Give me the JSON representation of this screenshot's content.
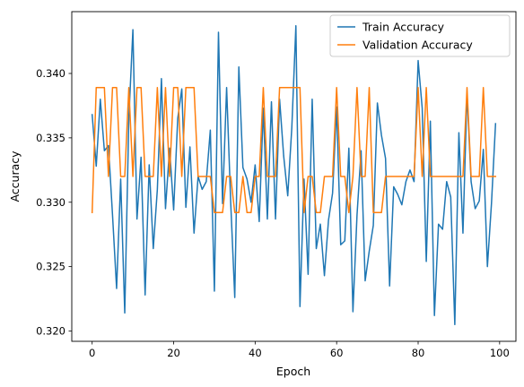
{
  "chart_data": {
    "type": "line",
    "xlabel": "Epoch",
    "ylabel": "Accuracy",
    "xlim": [
      -5,
      104
    ],
    "ylim": [
      0.3192,
      0.3448
    ],
    "xticks": [
      0,
      20,
      40,
      60,
      80,
      100
    ],
    "xtick_labels": [
      "0",
      "20",
      "40",
      "60",
      "80",
      "100"
    ],
    "yticks": [
      0.32,
      0.325,
      0.33,
      0.335,
      0.34
    ],
    "ytick_labels": [
      "0.320",
      "0.325",
      "0.330",
      "0.335",
      "0.340"
    ],
    "grid": false,
    "legend_position": "top-right",
    "x": [
      0,
      1,
      2,
      3,
      4,
      5,
      6,
      7,
      8,
      9,
      10,
      11,
      12,
      13,
      14,
      15,
      16,
      17,
      18,
      19,
      20,
      21,
      22,
      23,
      24,
      25,
      26,
      27,
      28,
      29,
      30,
      31,
      32,
      33,
      34,
      35,
      36,
      37,
      38,
      39,
      40,
      41,
      42,
      43,
      44,
      45,
      46,
      47,
      48,
      49,
      50,
      51,
      52,
      53,
      54,
      55,
      56,
      57,
      58,
      59,
      60,
      61,
      62,
      63,
      64,
      65,
      66,
      67,
      68,
      69,
      70,
      71,
      72,
      73,
      74,
      75,
      76,
      77,
      78,
      79,
      80,
      81,
      82,
      83,
      84,
      85,
      86,
      87,
      88,
      89,
      90,
      91,
      92,
      93,
      94,
      95,
      96,
      97,
      98,
      99
    ],
    "series": [
      {
        "name": "Train Accuracy",
        "color": "#1f77b4",
        "values": [
          0.3368,
          0.3328,
          0.338,
          0.334,
          0.3344,
          0.329,
          0.3233,
          0.3318,
          0.3214,
          0.3365,
          0.3434,
          0.3287,
          0.3335,
          0.3228,
          0.3329,
          0.3264,
          0.331,
          0.3396,
          0.3295,
          0.3342,
          0.3294,
          0.3365,
          0.3388,
          0.3296,
          0.3343,
          0.3276,
          0.332,
          0.331,
          0.3316,
          0.3356,
          0.3231,
          0.3432,
          0.3299,
          0.3389,
          0.33,
          0.3226,
          0.3405,
          0.3327,
          0.3318,
          0.33,
          0.3329,
          0.3285,
          0.3373,
          0.3287,
          0.3378,
          0.3287,
          0.338,
          0.3336,
          0.3305,
          0.3358,
          0.3437,
          0.3219,
          0.3318,
          0.3244,
          0.338,
          0.3264,
          0.3283,
          0.3243,
          0.3286,
          0.3307,
          0.3374,
          0.3267,
          0.327,
          0.3342,
          0.3215,
          0.329,
          0.334,
          0.3239,
          0.3262,
          0.3282,
          0.3377,
          0.3352,
          0.3334,
          0.3235,
          0.3312,
          0.3306,
          0.3298,
          0.3316,
          0.3325,
          0.3316,
          0.341,
          0.3373,
          0.3254,
          0.3363,
          0.3212,
          0.3283,
          0.3279,
          0.3316,
          0.3304,
          0.3205,
          0.3354,
          0.3276,
          0.3385,
          0.3316,
          0.3295,
          0.3301,
          0.3341,
          0.325,
          0.3299,
          0.3361
        ]
      },
      {
        "name": "Validation Accuracy",
        "color": "#ff7f0e",
        "values": [
          0.3292,
          0.3389,
          0.3389,
          0.3389,
          0.332,
          0.3389,
          0.3389,
          0.332,
          0.332,
          0.3389,
          0.332,
          0.3389,
          0.3389,
          0.332,
          0.332,
          0.332,
          0.3389,
          0.332,
          0.3389,
          0.332,
          0.3389,
          0.3389,
          0.332,
          0.3389,
          0.3389,
          0.3389,
          0.332,
          0.332,
          0.332,
          0.332,
          0.3292,
          0.3292,
          0.3292,
          0.332,
          0.332,
          0.3292,
          0.3292,
          0.332,
          0.3292,
          0.3292,
          0.332,
          0.332,
          0.3389,
          0.332,
          0.332,
          0.332,
          0.3389,
          0.3389,
          0.3389,
          0.3389,
          0.3389,
          0.3389,
          0.3292,
          0.332,
          0.332,
          0.3292,
          0.3292,
          0.332,
          0.332,
          0.332,
          0.3389,
          0.332,
          0.332,
          0.3292,
          0.332,
          0.3389,
          0.332,
          0.332,
          0.3389,
          0.3292,
          0.3292,
          0.3292,
          0.332,
          0.332,
          0.332,
          0.332,
          0.332,
          0.332,
          0.332,
          0.332,
          0.3389,
          0.332,
          0.3389,
          0.332,
          0.332,
          0.332,
          0.332,
          0.332,
          0.332,
          0.332,
          0.332,
          0.332,
          0.3389,
          0.332,
          0.332,
          0.332,
          0.3389,
          0.332,
          0.332,
          0.332
        ]
      }
    ]
  }
}
